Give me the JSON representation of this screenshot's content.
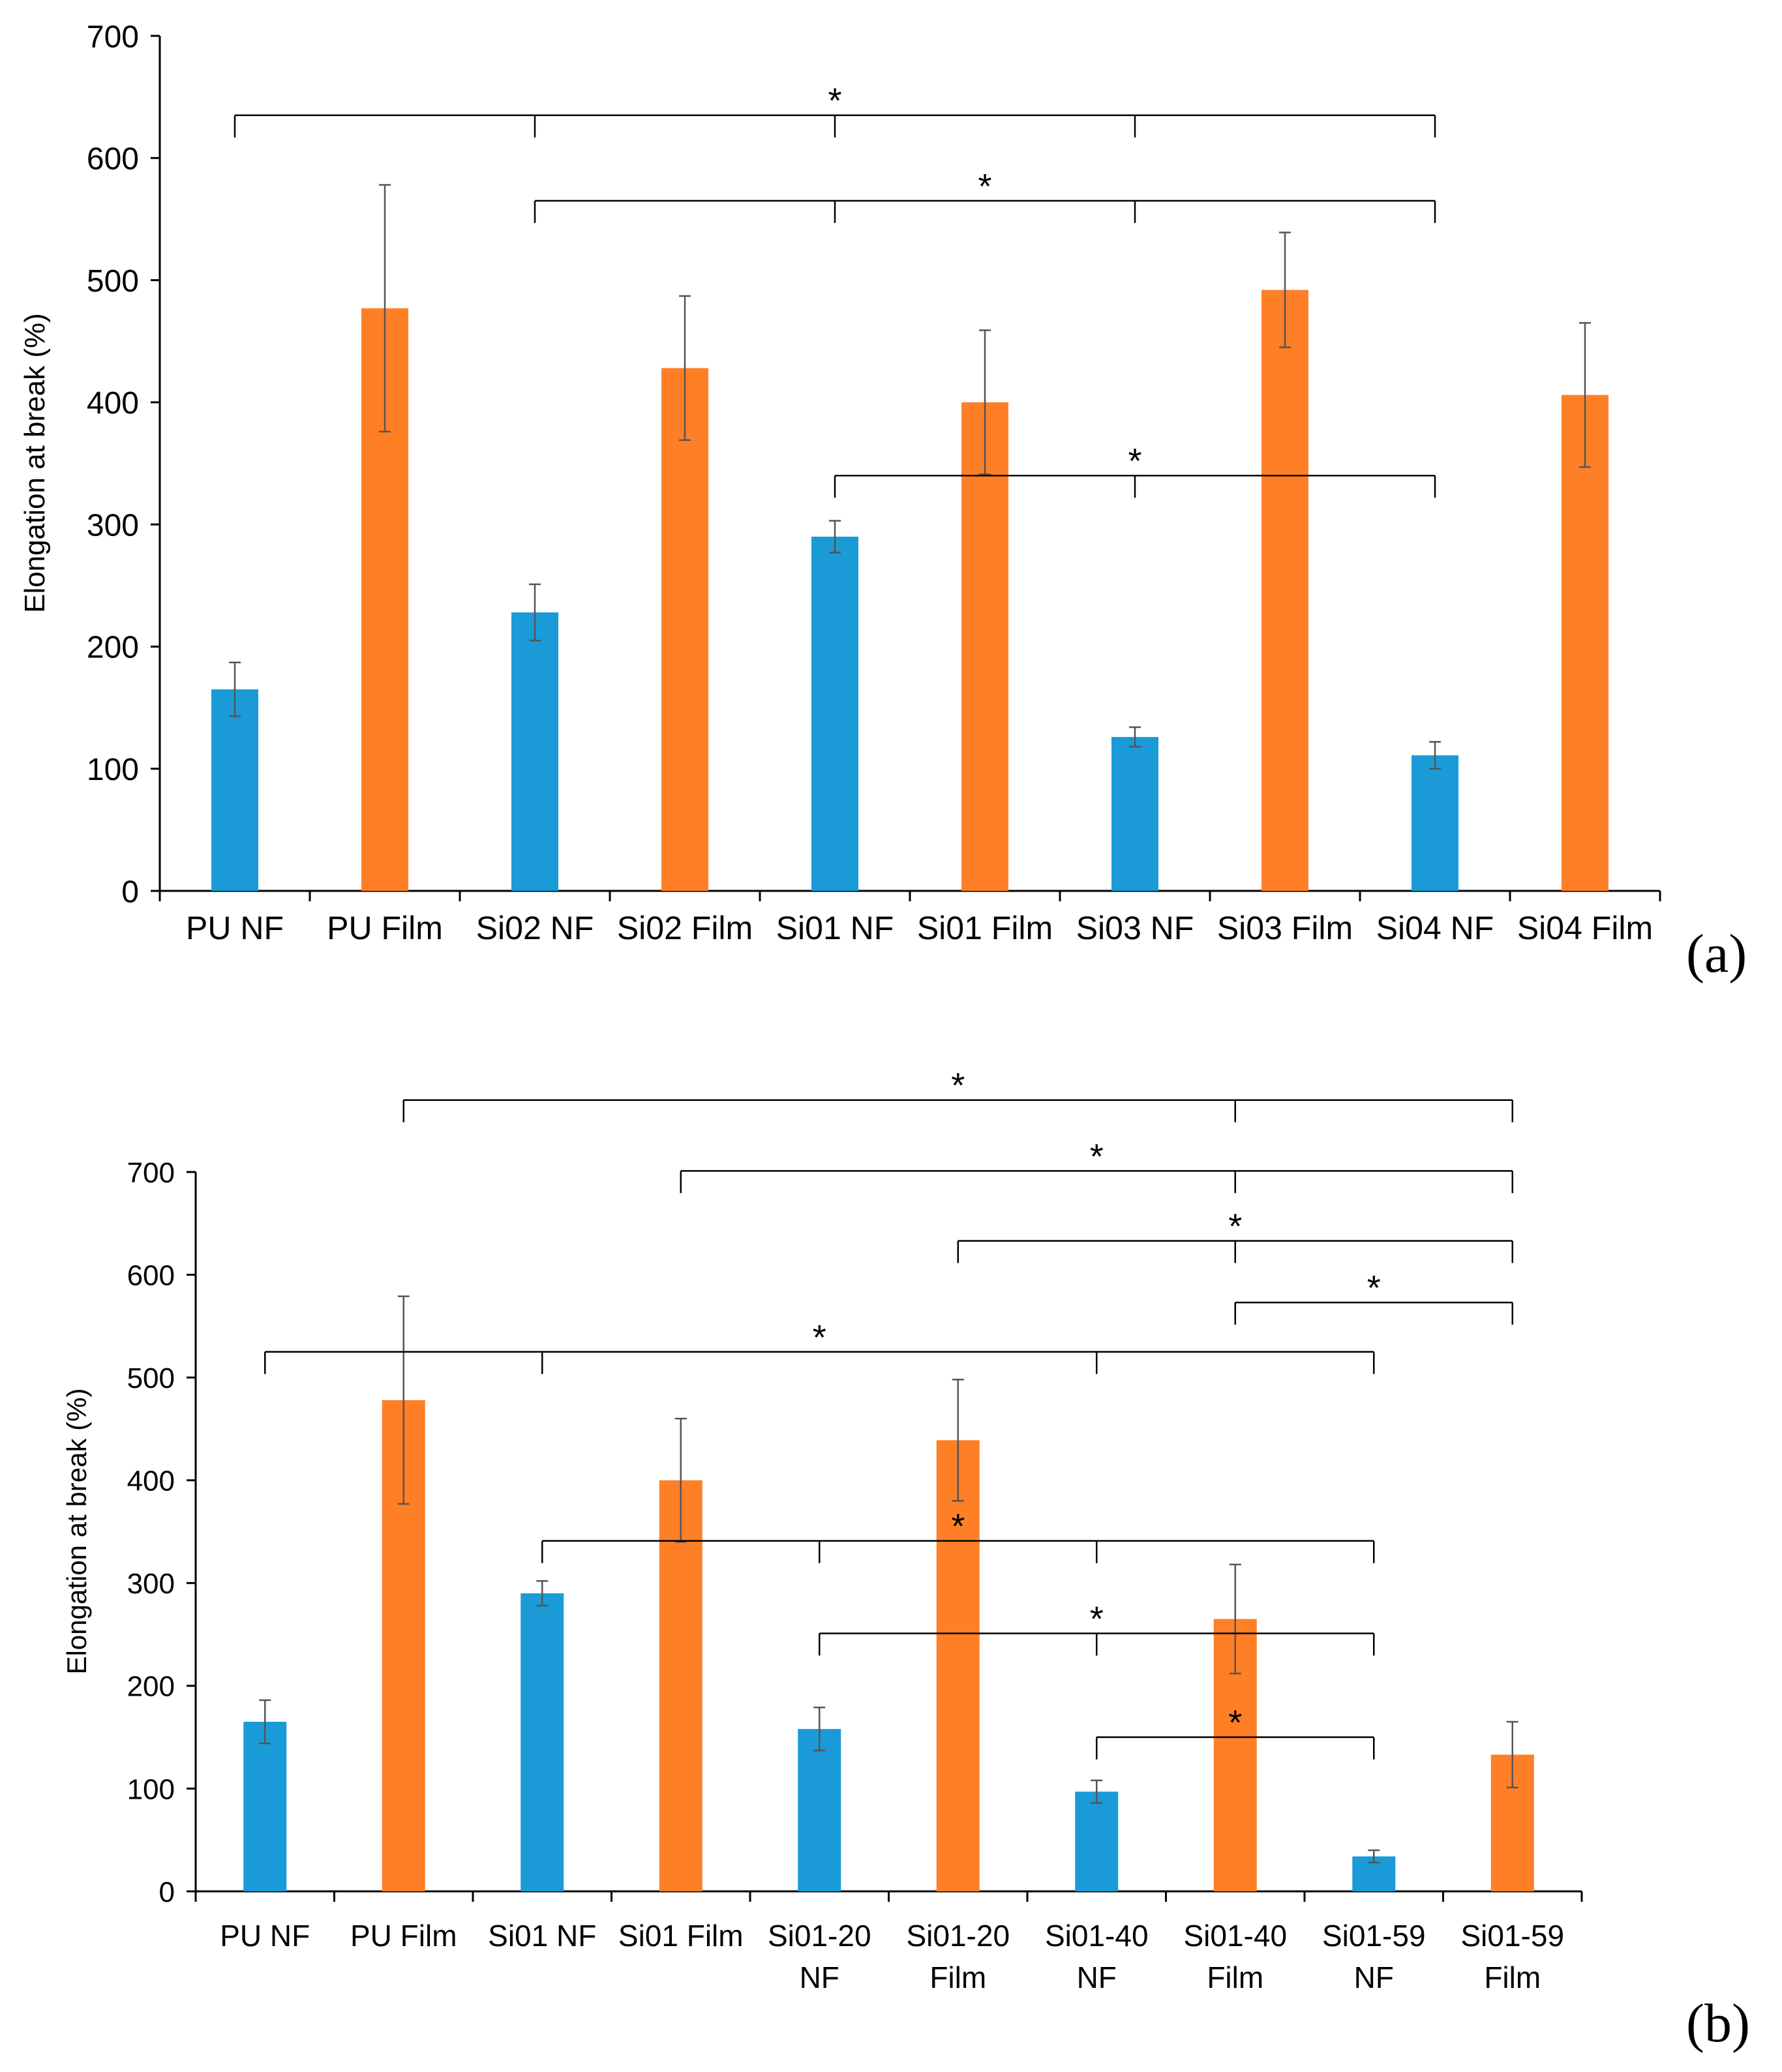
{
  "figure": {
    "panel_labels": [
      "(a)",
      "(b)"
    ],
    "significance_marker": "*"
  },
  "colors": {
    "nf": "#1a9bd7",
    "film": "#ff7f27",
    "axis": "#000000",
    "error_bar": "#555555"
  },
  "chart_data": [
    {
      "type": "bar",
      "panel": "(a)",
      "title": "",
      "xlabel": "",
      "ylabel": "Elongation at break (%)",
      "ylim": [
        0,
        700
      ],
      "yticks": [
        0,
        100,
        200,
        300,
        400,
        500,
        600,
        700
      ],
      "grid": false,
      "categories": [
        "PU NF",
        "PU Film",
        "Si02 NF",
        "Si02 Film",
        "Si01 NF",
        "Si01 Film",
        "Si03 NF",
        "Si03 Film",
        "Si04 NF",
        "Si04 Film"
      ],
      "values": [
        165,
        477,
        228,
        428,
        290,
        400,
        126,
        492,
        111,
        406
      ],
      "errors": [
        22,
        101,
        23,
        59,
        13,
        59,
        8,
        47,
        11,
        59
      ],
      "bar_types": [
        "NF",
        "Film",
        "NF",
        "Film",
        "NF",
        "Film",
        "NF",
        "Film",
        "NF",
        "Film"
      ],
      "significance": [
        {
          "y": 635,
          "ticks": [
            0,
            2,
            4,
            6,
            8
          ],
          "label": "*"
        },
        {
          "y": 565,
          "ticks": [
            2,
            4,
            6,
            8
          ],
          "label": "*"
        },
        {
          "y": 340,
          "ticks": [
            4,
            6,
            8
          ],
          "label": "*"
        }
      ]
    },
    {
      "type": "bar",
      "panel": "(b)",
      "title": "",
      "xlabel": "",
      "ylabel": "Elongation at break (%)",
      "ylim": [
        0,
        700
      ],
      "yticks": [
        0,
        100,
        200,
        300,
        400,
        500,
        600,
        700
      ],
      "grid": false,
      "categories": [
        [
          "PU NF"
        ],
        [
          "PU Film"
        ],
        [
          "Si01 NF"
        ],
        [
          "Si01 Film"
        ],
        [
          "Si01-20",
          "NF"
        ],
        [
          "Si01-20",
          "Film"
        ],
        [
          "Si01-40",
          "NF"
        ],
        [
          "Si01-40",
          "Film"
        ],
        [
          "Si01-59",
          "NF"
        ],
        [
          "Si01-59",
          "Film"
        ]
      ],
      "values": [
        165,
        478,
        290,
        400,
        158,
        439,
        97,
        265,
        34,
        133
      ],
      "errors": [
        21,
        101,
        12,
        60,
        21,
        59,
        11,
        53,
        6,
        32
      ],
      "bar_types": [
        "NF",
        "Film",
        "NF",
        "Film",
        "NF",
        "Film",
        "NF",
        "Film",
        "NF",
        "Film"
      ],
      "significance": [
        {
          "y": 770,
          "ticks": [
            1,
            7,
            9
          ],
          "label": "*"
        },
        {
          "y": 701,
          "ticks": [
            3,
            7,
            9
          ],
          "label": "*"
        },
        {
          "y": 633,
          "ticks": [
            5,
            7,
            9
          ],
          "label": "*"
        },
        {
          "y": 573,
          "ticks": [
            7,
            9
          ],
          "label": "*"
        },
        {
          "y": 525,
          "ticks": [
            0,
            2,
            6,
            8
          ],
          "label": "*"
        },
        {
          "y": 341,
          "ticks": [
            2,
            4,
            6,
            8
          ],
          "label": "*"
        },
        {
          "y": 251,
          "ticks": [
            4,
            6,
            8
          ],
          "label": "*"
        },
        {
          "y": 150,
          "ticks": [
            6,
            8
          ],
          "label": "*"
        }
      ]
    }
  ]
}
